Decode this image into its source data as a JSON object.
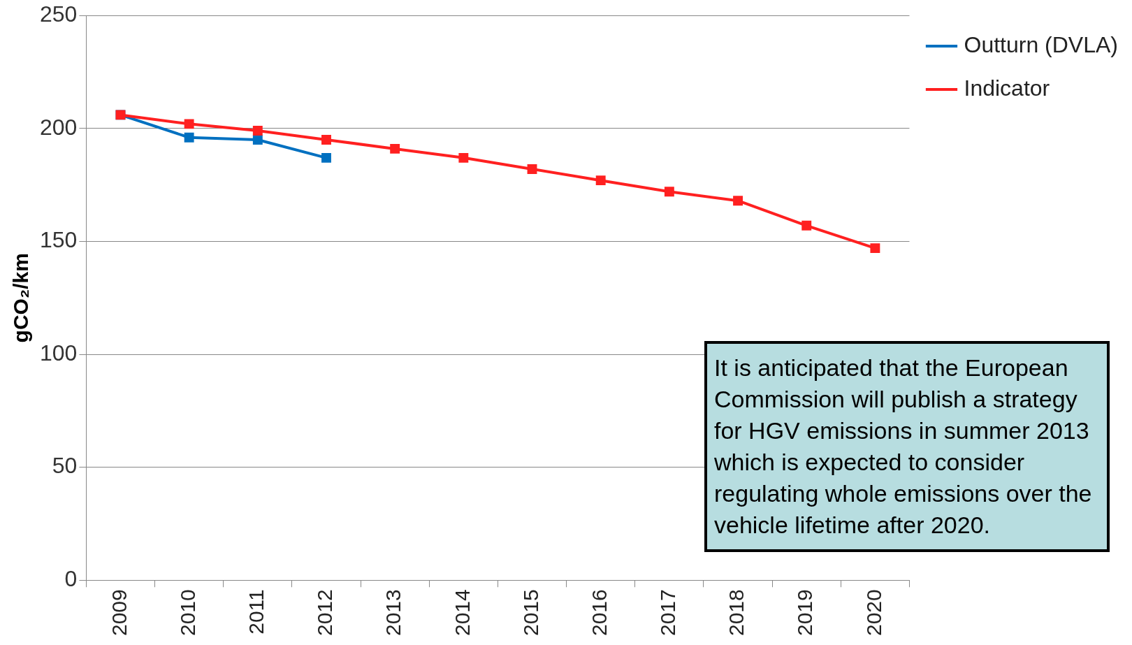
{
  "chart_data": {
    "type": "line",
    "ylabel": "gCO₂/km",
    "categories": [
      "2009",
      "2010",
      "2011",
      "2012",
      "2013",
      "2014",
      "2015",
      "2016",
      "2017",
      "2018",
      "2019",
      "2020"
    ],
    "series": [
      {
        "name": "Outturn (DVLA)",
        "color": "#0070c0",
        "values": [
          206,
          196,
          195,
          187,
          null,
          null,
          null,
          null,
          null,
          null,
          null,
          null
        ]
      },
      {
        "name": "Indicator",
        "color": "#ff2020",
        "values": [
          206,
          202,
          199,
          195,
          191,
          187,
          182,
          177,
          172,
          168,
          157,
          147
        ]
      }
    ],
    "ylim": [
      0,
      250
    ],
    "yticks": [
      0,
      50,
      100,
      150,
      200,
      250
    ],
    "grid": "y",
    "legend": "top right",
    "marker": "square",
    "line_style": "solid",
    "annotations": [
      "It is anticipated that the European Commission will publish a strategy for HGV emissions in summer 2013 which is expected to consider regulating whole emissions over the vehicle lifetime after 2020."
    ]
  }
}
